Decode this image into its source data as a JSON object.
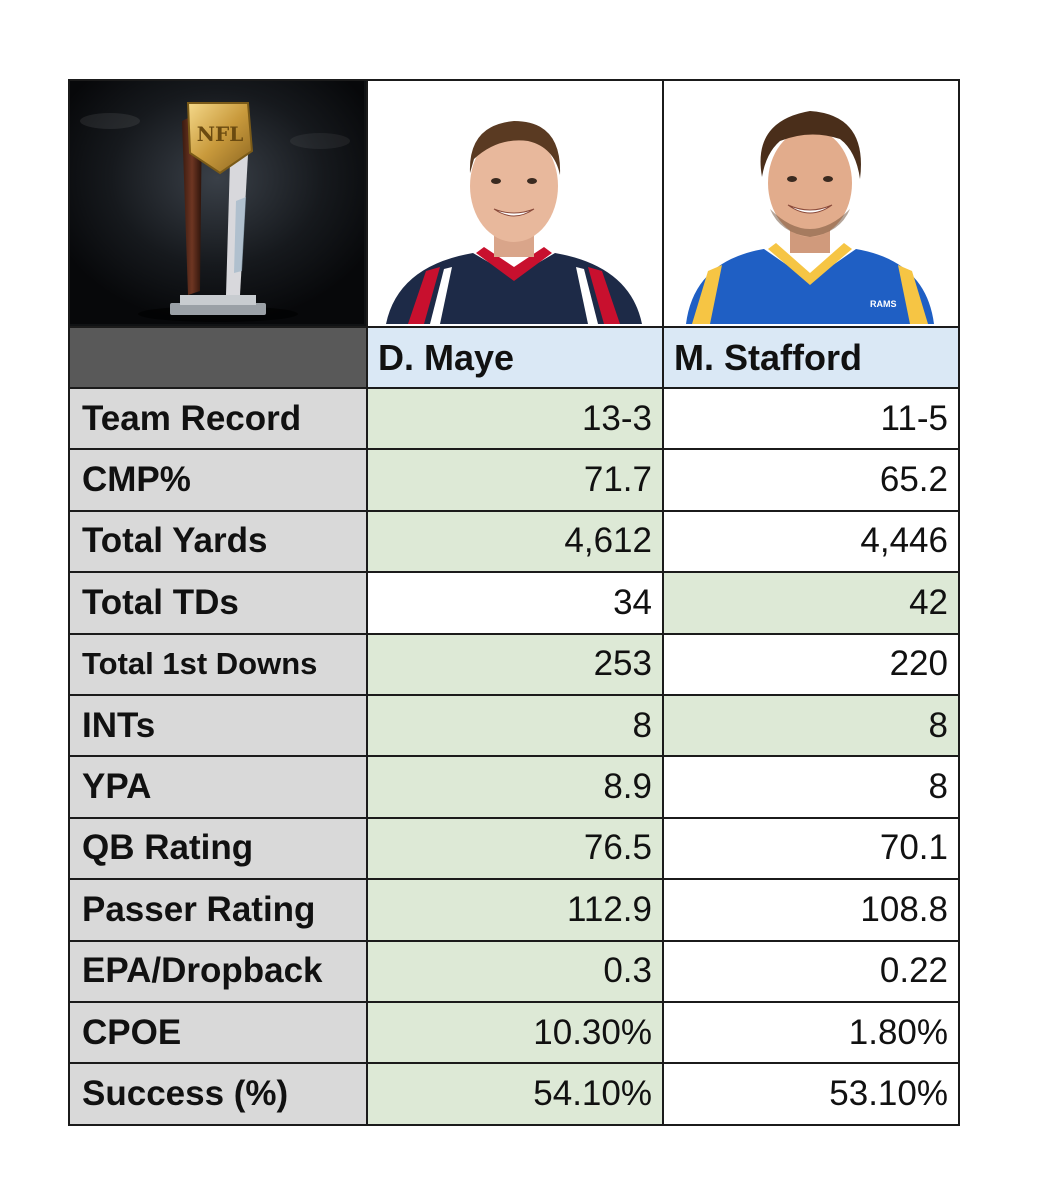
{
  "trophy": {
    "logo_text": "NFL"
  },
  "players": [
    {
      "name": "D. Maye",
      "jersey_color": "#1d2a47",
      "trim_color": "#c8102e"
    },
    {
      "name": "M. Stafford",
      "jersey_color": "#1f5fc4",
      "trim_color": "#f6c544",
      "jersey_text": "RAMS"
    }
  ],
  "rows": [
    {
      "label": "Team Record",
      "values": [
        "13-3",
        "11-5"
      ],
      "winner": [
        true,
        false
      ]
    },
    {
      "label": "CMP%",
      "values": [
        "71.7",
        "65.2"
      ],
      "winner": [
        true,
        false
      ]
    },
    {
      "label": "Total Yards",
      "values": [
        "4,612",
        "4,446"
      ],
      "winner": [
        true,
        false
      ]
    },
    {
      "label": "Total TDs",
      "values": [
        "34",
        "42"
      ],
      "winner": [
        false,
        true
      ]
    },
    {
      "label": "Total 1st Downs",
      "values": [
        "253",
        "220"
      ],
      "winner": [
        true,
        false
      ]
    },
    {
      "label": "INTs",
      "values": [
        "8",
        "8"
      ],
      "winner": [
        true,
        true
      ]
    },
    {
      "label": "YPA",
      "values": [
        "8.9",
        "8"
      ],
      "winner": [
        true,
        false
      ]
    },
    {
      "label": "QB Rating",
      "values": [
        "76.5",
        "70.1"
      ],
      "winner": [
        true,
        false
      ]
    },
    {
      "label": "Passer Rating",
      "values": [
        "112.9",
        "108.8"
      ],
      "winner": [
        true,
        false
      ]
    },
    {
      "label": "EPA/Dropback",
      "values": [
        "0.3",
        "0.22"
      ],
      "winner": [
        true,
        false
      ]
    },
    {
      "label": "CPOE",
      "values": [
        "10.30%",
        "1.80%"
      ],
      "winner": [
        true,
        false
      ]
    },
    {
      "label": "Success (%)",
      "values": [
        "54.10%",
        "53.10%"
      ],
      "winner": [
        true,
        false
      ]
    }
  ],
  "colors": {
    "label_bg": "#d9d9d9",
    "header_bg": "#dae8f5",
    "winner_bg": "#dde9d6",
    "loser_bg": "#ffffff",
    "header_blank_bg": "#595959"
  }
}
